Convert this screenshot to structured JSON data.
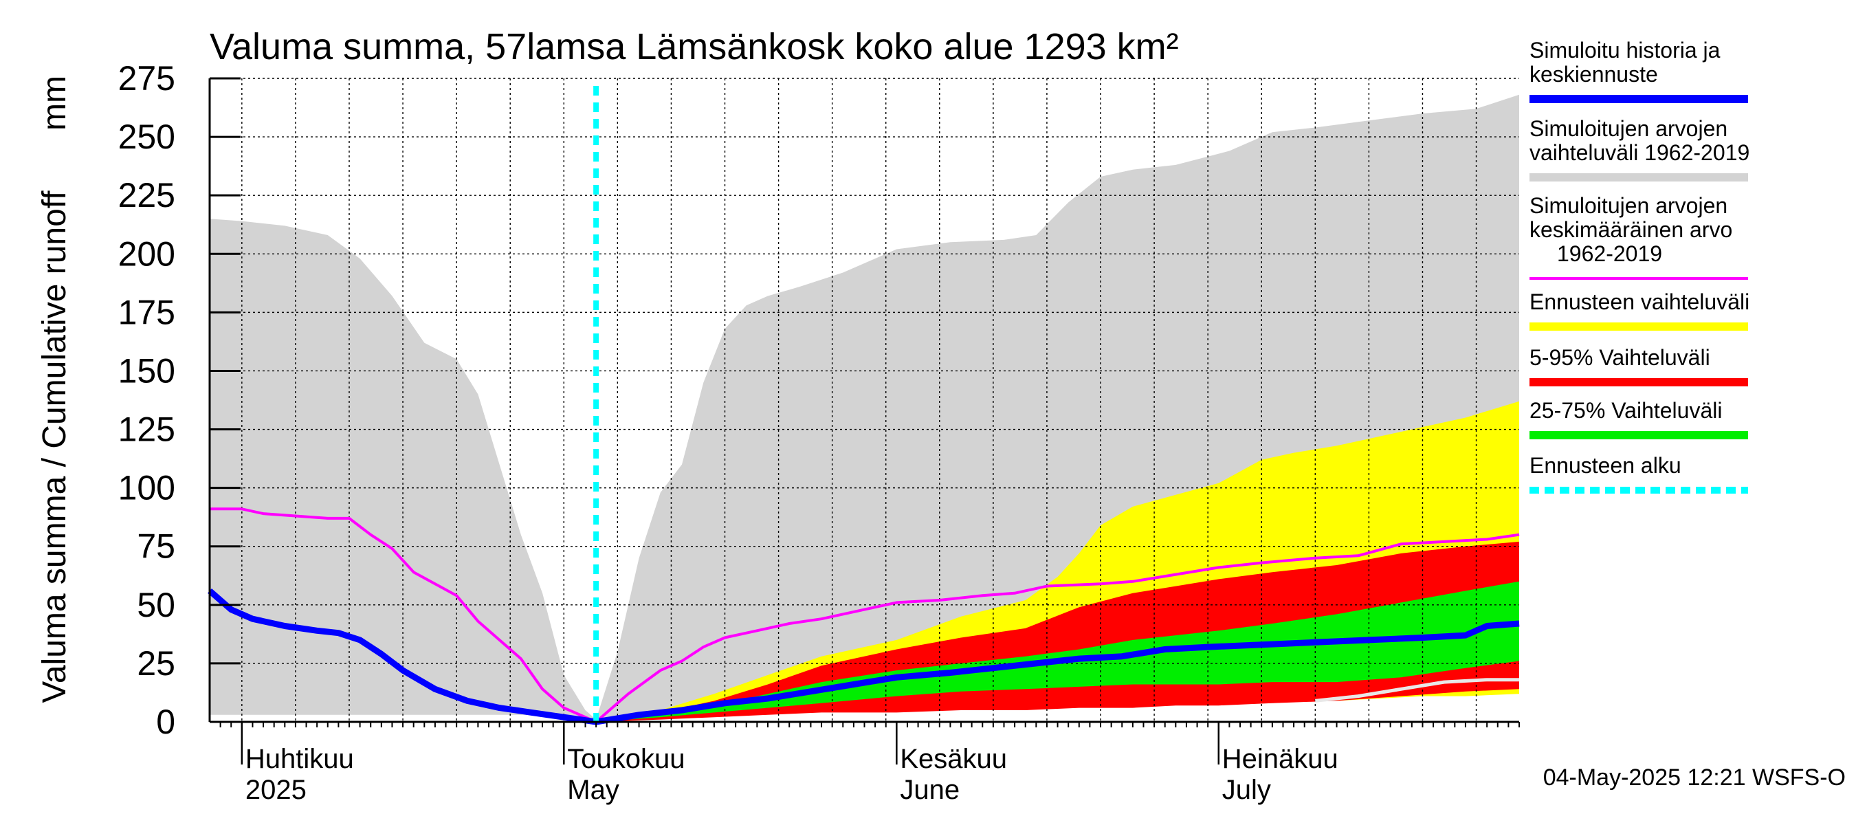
{
  "chart_data": {
    "type": "area",
    "title": "Valuma summa, 57lamsa Lämsänkosk koko alue 1293 km²",
    "ylabel": "Valuma summa / Cumulative runoff",
    "yunit": "mm",
    "ylim": [
      0,
      275
    ],
    "yticks": [
      0,
      25,
      50,
      75,
      100,
      125,
      150,
      175,
      200,
      225,
      250,
      275
    ],
    "xlim": [
      "2025-03-29",
      "2025-07-29"
    ],
    "forecast_start": "2025-05-04",
    "month_labels": [
      {
        "date": "2025-04-01",
        "line1": "Huhtikuu",
        "line2": "2025"
      },
      {
        "date": "2025-05-01",
        "line1": "Toukokuu",
        "line2": "May"
      },
      {
        "date": "2025-06-01",
        "line1": "Kesäkuu",
        "line2": "June"
      },
      {
        "date": "2025-07-01",
        "line1": "Heinäkuu",
        "line2": "July"
      }
    ],
    "grid": true,
    "legend_position": "right",
    "series": [
      {
        "name": "Simuloitujen arvojen vaihteluväli 1962-2019",
        "kind": "band",
        "color": "#d3d3d3",
        "x": [
          "2025-03-29",
          "2025-04-01",
          "2025-04-05",
          "2025-04-09",
          "2025-04-12",
          "2025-04-15",
          "2025-04-18",
          "2025-04-21",
          "2025-04-23",
          "2025-04-25",
          "2025-04-27",
          "2025-04-29",
          "2025-05-01",
          "2025-05-03",
          "2025-05-04",
          "2025-05-06",
          "2025-05-08",
          "2025-05-10",
          "2025-05-12",
          "2025-05-14",
          "2025-05-16",
          "2025-05-18",
          "2025-05-20",
          "2025-05-23",
          "2025-05-27",
          "2025-06-01",
          "2025-06-06",
          "2025-06-11",
          "2025-06-14",
          "2025-06-17",
          "2025-06-20",
          "2025-06-23",
          "2025-06-27",
          "2025-07-02",
          "2025-07-06",
          "2025-07-10",
          "2025-07-15",
          "2025-07-20",
          "2025-07-25",
          "2025-07-29"
        ],
        "low": [
          3,
          3,
          3,
          3,
          3,
          3,
          3,
          3,
          3,
          3,
          3,
          3,
          2,
          1,
          1,
          2,
          3,
          3,
          3,
          4,
          4,
          5,
          5,
          5,
          5,
          6,
          6,
          7,
          7,
          7,
          7,
          7,
          8,
          8,
          8,
          9,
          10,
          12,
          14,
          16
        ],
        "high": [
          215,
          214,
          212,
          208,
          198,
          182,
          162,
          155,
          140,
          110,
          80,
          55,
          20,
          5,
          1,
          30,
          70,
          98,
          110,
          145,
          168,
          178,
          182,
          186,
          192,
          202,
          205,
          206,
          208,
          222,
          233,
          236,
          238,
          244,
          252,
          254,
          257,
          260,
          262,
          268
        ]
      },
      {
        "name": "Ennusteen vaihteluväli",
        "kind": "band",
        "color": "#ffff00",
        "x": [
          "2025-05-04",
          "2025-05-10",
          "2025-05-15",
          "2025-05-20",
          "2025-05-25",
          "2025-06-01",
          "2025-06-07",
          "2025-06-13",
          "2025-06-16",
          "2025-06-18",
          "2025-06-20",
          "2025-06-23",
          "2025-06-27",
          "2025-07-01",
          "2025-07-05",
          "2025-07-08",
          "2025-07-12",
          "2025-07-16",
          "2025-07-20",
          "2025-07-24",
          "2025-07-29"
        ],
        "low": [
          0,
          2,
          3,
          4,
          5,
          5,
          6,
          6,
          7,
          7,
          7,
          7,
          8,
          8,
          8,
          9,
          9,
          10,
          11,
          11,
          12
        ],
        "high": [
          0,
          5,
          12,
          20,
          28,
          35,
          45,
          52,
          62,
          72,
          84,
          92,
          97,
          102,
          112,
          115,
          118,
          122,
          126,
          130,
          137
        ]
      },
      {
        "name": "5-95% Vaihteluväli",
        "kind": "band",
        "color": "#ff0000",
        "x": [
          "2025-05-04",
          "2025-05-10",
          "2025-05-15",
          "2025-05-20",
          "2025-05-25",
          "2025-06-01",
          "2025-06-07",
          "2025-06-13",
          "2025-06-18",
          "2025-06-23",
          "2025-06-27",
          "2025-07-01",
          "2025-07-06",
          "2025-07-12",
          "2025-07-18",
          "2025-07-24",
          "2025-07-29"
        ],
        "low": [
          0,
          1,
          2,
          3,
          4,
          4,
          5,
          5,
          6,
          6,
          7,
          7,
          8,
          9,
          11,
          13,
          14
        ],
        "high": [
          0,
          4,
          9,
          16,
          24,
          31,
          36,
          40,
          49,
          55,
          58,
          61,
          64,
          67,
          72,
          75,
          77
        ]
      },
      {
        "name": "25-75% Vaihteluväli",
        "kind": "band",
        "color": "#00ee00",
        "x": [
          "2025-05-04",
          "2025-05-10",
          "2025-05-15",
          "2025-05-20",
          "2025-05-25",
          "2025-06-01",
          "2025-06-07",
          "2025-06-13",
          "2025-06-18",
          "2025-06-23",
          "2025-06-27",
          "2025-07-01",
          "2025-07-06",
          "2025-07-12",
          "2025-07-18",
          "2025-07-24",
          "2025-07-29"
        ],
        "low": [
          0,
          2,
          4,
          6,
          8,
          11,
          13,
          14,
          15,
          16,
          16,
          16,
          17,
          17,
          19,
          23,
          26
        ],
        "high": [
          0,
          3,
          7,
          12,
          17,
          22,
          25,
          28,
          31,
          35,
          37,
          39,
          42,
          46,
          51,
          56,
          60
        ]
      },
      {
        "name": "Simuloitujen arvojen keskimääräinen arvo 1962-2019",
        "kind": "line",
        "color": "#ff00ff",
        "x": [
          "2025-03-29",
          "2025-04-01",
          "2025-04-03",
          "2025-04-06",
          "2025-04-09",
          "2025-04-11",
          "2025-04-13",
          "2025-04-15",
          "2025-04-17",
          "2025-04-19",
          "2025-04-21",
          "2025-04-23",
          "2025-04-25",
          "2025-04-27",
          "2025-04-29",
          "2025-05-01",
          "2025-05-04",
          "2025-05-07",
          "2025-05-10",
          "2025-05-12",
          "2025-05-14",
          "2025-05-16",
          "2025-05-19",
          "2025-05-22",
          "2025-05-25",
          "2025-05-29",
          "2025-06-01",
          "2025-06-05",
          "2025-06-09",
          "2025-06-12",
          "2025-06-15",
          "2025-06-20",
          "2025-06-23",
          "2025-06-27",
          "2025-07-01",
          "2025-07-05",
          "2025-07-10",
          "2025-07-14",
          "2025-07-18",
          "2025-07-22",
          "2025-07-26",
          "2025-07-29"
        ],
        "values": [
          91,
          91,
          89,
          88,
          87,
          87,
          80,
          74,
          64,
          59,
          54,
          43,
          35,
          27,
          14,
          6,
          0,
          12,
          22,
          26,
          32,
          36,
          39,
          42,
          44,
          48,
          51,
          52,
          54,
          55,
          58,
          59,
          60,
          63,
          66,
          68,
          70,
          71,
          76,
          77,
          78,
          80
        ]
      },
      {
        "name": "Simuloitu historia ja keskiennuste",
        "kind": "line",
        "color": "#0000ff",
        "x": [
          "2025-03-29",
          "2025-03-31",
          "2025-04-02",
          "2025-04-05",
          "2025-04-08",
          "2025-04-10",
          "2025-04-12",
          "2025-04-14",
          "2025-04-16",
          "2025-04-19",
          "2025-04-22",
          "2025-04-25",
          "2025-04-28",
          "2025-05-01",
          "2025-05-04",
          "2025-05-08",
          "2025-05-12",
          "2025-05-16",
          "2025-05-20",
          "2025-05-24",
          "2025-05-28",
          "2025-06-01",
          "2025-06-06",
          "2025-06-10",
          "2025-06-14",
          "2025-06-18",
          "2025-06-22",
          "2025-06-26",
          "2025-06-30",
          "2025-07-05",
          "2025-07-10",
          "2025-07-15",
          "2025-07-20",
          "2025-07-24",
          "2025-07-26",
          "2025-07-29"
        ],
        "values": [
          56,
          48,
          44,
          41,
          39,
          38,
          35,
          29,
          22,
          14,
          9,
          6,
          4,
          2,
          0,
          3,
          5,
          8,
          10,
          13,
          16,
          19,
          21,
          23,
          25,
          27,
          28,
          31,
          32,
          33,
          34,
          35,
          36,
          37,
          41,
          42
        ]
      },
      {
        "name": "",
        "kind": "line",
        "color": "#e8e8e8",
        "x": [
          "2025-07-10",
          "2025-07-14",
          "2025-07-18",
          "2025-07-22",
          "2025-07-26",
          "2025-07-29"
        ],
        "values": [
          9,
          11,
          14,
          17,
          18,
          18
        ]
      }
    ],
    "legend": [
      {
        "label": "Simuloitu historia ja keskiennuste",
        "color": "#0000ff",
        "style": "solid"
      },
      {
        "label": "Simuloitujen arvojen vaihteluväli 1962-2019",
        "color": "#d3d3d3",
        "style": "solid"
      },
      {
        "label": "Simuloitujen arvojen keskimääräinen arvo 1962-2019",
        "color": "#ff00ff",
        "style": "thin"
      },
      {
        "label": "Ennusteen vaihteluväli",
        "color": "#ffff00",
        "style": "solid"
      },
      {
        "label": "5-95% Vaihteluväli",
        "color": "#ff0000",
        "style": "solid"
      },
      {
        "label": "25-75% Vaihteluväli",
        "color": "#00ee00",
        "style": "solid"
      },
      {
        "label": "Ennusteen alku",
        "color": "#00ffff",
        "style": "dashed"
      }
    ],
    "legend_text_lines": [
      [
        "Simuloitu historia ja",
        "keskiennuste"
      ],
      [
        "Simuloitujen arvojen",
        "vaihteluväli 1962-2019"
      ],
      [
        "Simuloitujen arvojen",
        "keskimääräinen arvo",
        "1962-2019"
      ],
      [
        "Ennusteen vaihteluväli"
      ],
      [
        "5-95% Vaihteluväli"
      ],
      [
        "25-75% Vaihteluväli"
      ],
      [
        "Ennusteen alku"
      ]
    ],
    "footer": "04-May-2025 12:21 WSFS-O"
  }
}
